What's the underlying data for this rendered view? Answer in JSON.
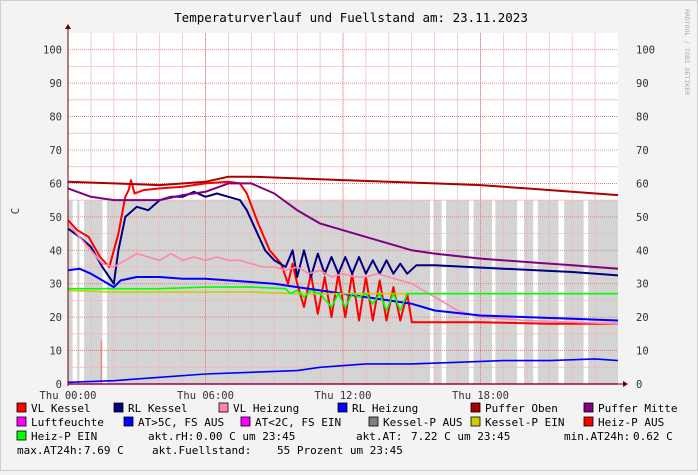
{
  "chart_data": {
    "type": "line",
    "title": "Temperaturverlauf und Fuellstand am: 23.11.2023",
    "watermark": "RRDTOOL / TOBI OETIKER",
    "ylabel": "C",
    "ylim": [
      0,
      105
    ],
    "yticks": [
      0,
      10,
      20,
      30,
      40,
      50,
      60,
      70,
      80,
      90,
      100
    ],
    "xlim": [
      0,
      24
    ],
    "xticks": [
      {
        "x": 0,
        "label": "Thu 00:00"
      },
      {
        "x": 6,
        "label": "Thu 06:00"
      },
      {
        "x": 12,
        "label": "Thu 12:00"
      },
      {
        "x": 18,
        "label": "Thu 18:00"
      }
    ],
    "grid": true,
    "colors": {
      "background": "#f3f3f3",
      "canvas": "#ffffff",
      "minor_grid": "#f0b8b8",
      "major_grid": "#e36d6d",
      "axis": "#6b0000",
      "fill": "#d4d4d4"
    },
    "fill_series": {
      "name": "Fuellstand",
      "color": "#d4d4d4",
      "level": 55,
      "gaps": [
        [
          0.2,
          0.4
        ],
        [
          0.5,
          0.7
        ],
        [
          1.5,
          1.7
        ],
        [
          15.8,
          15.95
        ],
        [
          16.3,
          16.5
        ],
        [
          17.5,
          17.7
        ],
        [
          18.5,
          18.65
        ],
        [
          19.6,
          19.9
        ],
        [
          20.3,
          20.5
        ],
        [
          21.4,
          21.65
        ],
        [
          22.5,
          22.7
        ]
      ]
    },
    "spike_x": 1.45,
    "series": [
      {
        "name": "VL Kessel",
        "color": "#ff0000",
        "points": [
          [
            0,
            49
          ],
          [
            0.4,
            46
          ],
          [
            0.9,
            44
          ],
          [
            1.4,
            38
          ],
          [
            1.8,
            35
          ],
          [
            2.2,
            45
          ],
          [
            2.5,
            56
          ],
          [
            2.65,
            58
          ],
          [
            2.75,
            61
          ],
          [
            2.9,
            57
          ],
          [
            3.3,
            58
          ],
          [
            4,
            58.5
          ],
          [
            5,
            59
          ],
          [
            6,
            60
          ],
          [
            7,
            60.5
          ],
          [
            7.5,
            60
          ],
          [
            7.8,
            57
          ],
          [
            8.3,
            48
          ],
          [
            8.8,
            40
          ],
          [
            9.3,
            36
          ],
          [
            9.6,
            30
          ],
          [
            9.8,
            36
          ],
          [
            10,
            30
          ],
          [
            10.3,
            23
          ],
          [
            10.6,
            33
          ],
          [
            10.9,
            21
          ],
          [
            11.2,
            32
          ],
          [
            11.5,
            20
          ],
          [
            11.8,
            33
          ],
          [
            12.1,
            20
          ],
          [
            12.4,
            33
          ],
          [
            12.7,
            19
          ],
          [
            13.0,
            32
          ],
          [
            13.3,
            19
          ],
          [
            13.6,
            31
          ],
          [
            13.9,
            19
          ],
          [
            14.2,
            29
          ],
          [
            14.5,
            19
          ],
          [
            14.8,
            27
          ],
          [
            15,
            18.5
          ],
          [
            18,
            18.5
          ],
          [
            21,
            18
          ],
          [
            24,
            18
          ]
        ]
      },
      {
        "name": "RL Kessel",
        "color": "#000080",
        "points": [
          [
            0,
            46.5
          ],
          [
            0.5,
            44
          ],
          [
            1,
            41
          ],
          [
            1.5,
            35
          ],
          [
            2,
            30
          ],
          [
            2.2,
            40
          ],
          [
            2.5,
            50
          ],
          [
            3,
            53
          ],
          [
            3.5,
            52
          ],
          [
            4,
            55
          ],
          [
            4.5,
            56
          ],
          [
            5,
            56
          ],
          [
            5.5,
            57.5
          ],
          [
            6,
            56
          ],
          [
            6.5,
            57
          ],
          [
            7,
            56
          ],
          [
            7.5,
            55
          ],
          [
            7.8,
            52
          ],
          [
            8.2,
            46
          ],
          [
            8.6,
            40
          ],
          [
            9,
            37
          ],
          [
            9.5,
            35
          ],
          [
            9.8,
            40
          ],
          [
            10,
            32
          ],
          [
            10.3,
            40
          ],
          [
            10.6,
            32
          ],
          [
            10.9,
            39
          ],
          [
            11.2,
            33
          ],
          [
            11.5,
            38
          ],
          [
            11.8,
            33
          ],
          [
            12.1,
            38
          ],
          [
            12.4,
            33
          ],
          [
            12.7,
            38
          ],
          [
            13.0,
            33
          ],
          [
            13.3,
            37
          ],
          [
            13.6,
            33
          ],
          [
            13.9,
            37
          ],
          [
            14.2,
            33
          ],
          [
            14.5,
            36
          ],
          [
            14.8,
            33
          ],
          [
            15.2,
            35.5
          ],
          [
            16,
            35.5
          ],
          [
            19,
            34.5
          ],
          [
            22,
            33.5
          ],
          [
            24,
            32.5
          ]
        ]
      },
      {
        "name": "VL Heizung",
        "color": "#ff88aa",
        "points": [
          [
            0,
            48
          ],
          [
            0.5,
            44
          ],
          [
            1,
            40
          ],
          [
            1.5,
            36
          ],
          [
            2,
            35
          ],
          [
            2.5,
            37
          ],
          [
            3,
            39
          ],
          [
            3.5,
            38
          ],
          [
            4,
            37
          ],
          [
            4.5,
            39
          ],
          [
            5,
            37
          ],
          [
            5.5,
            38
          ],
          [
            6,
            37
          ],
          [
            6.5,
            38
          ],
          [
            7,
            37
          ],
          [
            7.5,
            37
          ],
          [
            8,
            36
          ],
          [
            8.5,
            35
          ],
          [
            9,
            35
          ],
          [
            9.5,
            34
          ],
          [
            10,
            35
          ],
          [
            10.5,
            33
          ],
          [
            11,
            34
          ],
          [
            11.5,
            32
          ],
          [
            12,
            33
          ],
          [
            12.5,
            32
          ],
          [
            13,
            32
          ],
          [
            13.5,
            33
          ],
          [
            14,
            32
          ],
          [
            15,
            30
          ],
          [
            16,
            26
          ],
          [
            17,
            22
          ],
          [
            18,
            20
          ],
          [
            19,
            19.5
          ],
          [
            20,
            19
          ],
          [
            22,
            18.5
          ],
          [
            24,
            18
          ]
        ]
      },
      {
        "name": "RL Heizung",
        "color": "#0000ff",
        "points": [
          [
            0,
            34
          ],
          [
            0.5,
            34.5
          ],
          [
            1,
            33
          ],
          [
            1.5,
            31
          ],
          [
            2,
            29
          ],
          [
            2.3,
            31
          ],
          [
            3,
            32
          ],
          [
            4,
            32
          ],
          [
            5,
            31.5
          ],
          [
            6,
            31.5
          ],
          [
            7,
            31
          ],
          [
            8,
            30.5
          ],
          [
            9,
            30
          ],
          [
            10,
            29
          ],
          [
            11,
            28
          ],
          [
            12,
            27
          ],
          [
            13,
            26
          ],
          [
            14,
            25
          ],
          [
            15,
            24
          ],
          [
            16,
            22
          ],
          [
            18,
            20.5
          ],
          [
            20,
            20
          ],
          [
            22,
            19.5
          ],
          [
            24,
            19
          ]
        ]
      },
      {
        "name": "Puffer Oben",
        "color": "#aa0000",
        "points": [
          [
            0,
            60.5
          ],
          [
            2,
            60
          ],
          [
            4,
            59.5
          ],
          [
            6,
            60.5
          ],
          [
            7,
            62
          ],
          [
            8,
            62
          ],
          [
            10,
            61.5
          ],
          [
            12,
            61
          ],
          [
            14,
            60.5
          ],
          [
            16,
            60
          ],
          [
            18,
            59.5
          ],
          [
            20,
            58.5
          ],
          [
            22,
            57.5
          ],
          [
            24,
            56.5
          ]
        ]
      },
      {
        "name": "Puffer Mitte",
        "color": "#800080",
        "points": [
          [
            0,
            58.5
          ],
          [
            1,
            56
          ],
          [
            2,
            55
          ],
          [
            3,
            55
          ],
          [
            4,
            55
          ],
          [
            5,
            56.5
          ],
          [
            6,
            57.5
          ],
          [
            7,
            60
          ],
          [
            8,
            60
          ],
          [
            9,
            57
          ],
          [
            10,
            52
          ],
          [
            11,
            48
          ],
          [
            12,
            46
          ],
          [
            13,
            44
          ],
          [
            14,
            42
          ],
          [
            15,
            40
          ],
          [
            16,
            39
          ],
          [
            18,
            37.5
          ],
          [
            20,
            36.5
          ],
          [
            22,
            35.5
          ],
          [
            24,
            34.5
          ]
        ]
      },
      {
        "name": "Luftfeuchte",
        "color": "#ff00ff",
        "points": [
          [
            0,
            0
          ],
          [
            24,
            0
          ]
        ]
      },
      {
        "name": "AT>5C, FS AUS",
        "color": "#0000ff",
        "points": [
          [
            0,
            0.5
          ],
          [
            2,
            1
          ],
          [
            4,
            2
          ],
          [
            6,
            3
          ],
          [
            8,
            3.5
          ],
          [
            10,
            4
          ],
          [
            11,
            5
          ],
          [
            13,
            6
          ],
          [
            15,
            6
          ],
          [
            17,
            6.5
          ],
          [
            19,
            7
          ],
          [
            21,
            7
          ],
          [
            23,
            7.5
          ],
          [
            24,
            7
          ]
        ]
      },
      {
        "name": "AT<2C, FS EIN",
        "color": "#ff00ff",
        "points": []
      },
      {
        "name": "Kessel-P AUS",
        "color": "#808080",
        "points": []
      },
      {
        "name": "Kessel-P EIN",
        "color": "#cccc00",
        "points": [
          [
            0,
            28
          ],
          [
            2,
            27.5
          ],
          [
            4,
            27.5
          ],
          [
            6,
            27.5
          ],
          [
            8,
            27.5
          ],
          [
            10,
            27
          ],
          [
            12,
            27
          ],
          [
            14,
            27
          ],
          [
            16,
            27
          ],
          [
            18,
            27
          ],
          [
            20,
            27
          ],
          [
            22,
            27
          ],
          [
            24,
            27
          ]
        ]
      },
      {
        "name": "Heiz-P AUS",
        "color": "#ff0000",
        "points": []
      },
      {
        "name": "Heiz-P EIN",
        "color": "#00ff00",
        "points": [
          [
            0,
            28.5
          ],
          [
            2,
            28.5
          ],
          [
            4,
            28.5
          ],
          [
            6,
            29
          ],
          [
            8,
            29
          ],
          [
            9.5,
            28.5
          ],
          [
            9.7,
            27
          ],
          [
            10,
            28
          ],
          [
            10.3,
            26
          ],
          [
            10.6,
            28
          ],
          [
            11,
            27
          ],
          [
            11.5,
            23
          ],
          [
            11.8,
            27
          ],
          [
            12.1,
            23
          ],
          [
            12.4,
            27
          ],
          [
            12.7,
            26
          ],
          [
            13.0,
            27
          ],
          [
            13.3,
            24
          ],
          [
            13.6,
            27
          ],
          [
            13.9,
            22
          ],
          [
            14.2,
            27
          ],
          [
            14.5,
            22
          ],
          [
            14.8,
            27
          ],
          [
            15,
            27
          ],
          [
            24,
            27
          ]
        ]
      }
    ],
    "status_lines": [
      [
        {
          "label": "akt.rH:",
          "value": "0.00 C um 23:45"
        },
        {
          "label": "akt.AT:",
          "value": "7.22 C um 23:45"
        },
        {
          "label": "min.AT24h:",
          "value": "0.62 C"
        }
      ],
      [
        {
          "label": "max.AT24h:",
          "value": "7.69 C"
        },
        {
          "label": "akt.Fuellstand:",
          "value": "55 Prozent um 23:45"
        }
      ]
    ]
  }
}
